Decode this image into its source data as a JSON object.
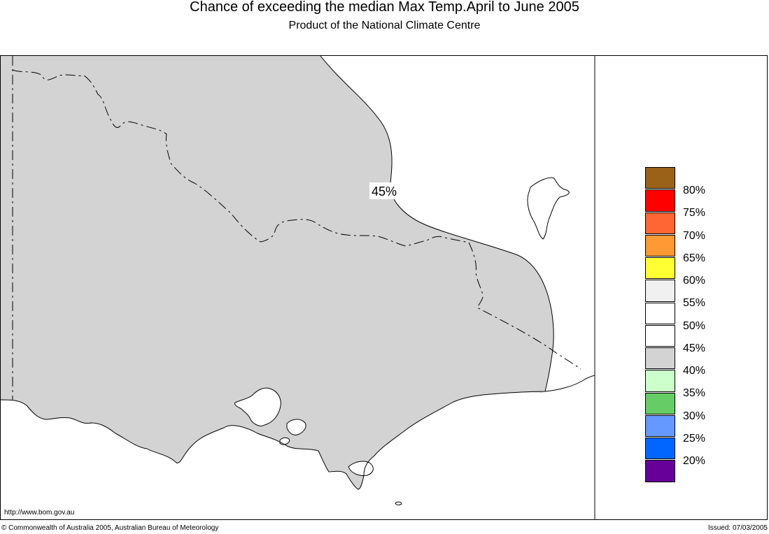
{
  "title": "Chance of exceeding the median Max Temp.April to June 2005",
  "subtitle": "Product of the National Climate Centre",
  "map": {
    "region_label": "45%",
    "fill_region_value": "40%",
    "colors": {
      "land_shade": "#d3d3d3",
      "water": "#ffffff",
      "coast": "#000000"
    }
  },
  "legend": {
    "entries": [
      {
        "label": "80%",
        "color": "#9a6118"
      },
      {
        "label": "75%",
        "color": "#ff0000"
      },
      {
        "label": "70%",
        "color": "#ff6633"
      },
      {
        "label": "65%",
        "color": "#ff9933"
      },
      {
        "label": "60%",
        "color": "#ffff33"
      },
      {
        "label": "55%",
        "color": "#f0f0f0"
      },
      {
        "label": "50%",
        "color": "#ffffff"
      },
      {
        "label": "45%",
        "color": "#ffffff"
      },
      {
        "label": "40%",
        "color": "#d3d3d3"
      },
      {
        "label": "35%",
        "color": "#ccffcc"
      },
      {
        "label": "30%",
        "color": "#66cc66"
      },
      {
        "label": "25%",
        "color": "#6699ff"
      },
      {
        "label": "20%",
        "color": "#0066ff"
      }
    ],
    "bottom_color": "#660099"
  },
  "footer": {
    "url": "http://www.bom.gov.au",
    "copyright": "© Commonwealth of Australia 2005, Australian Bureau of Meteorology",
    "issued": "Issued: 07/03/2005"
  }
}
